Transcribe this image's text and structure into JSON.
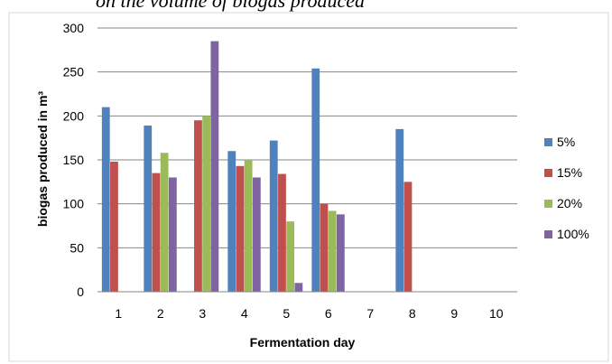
{
  "caption": "on the volume of biogas produced",
  "chart_data": {
    "type": "bar",
    "title": "",
    "xlabel": "Fermentation day",
    "ylabel": "biogas produced  in m³",
    "categories": [
      "1",
      "2",
      "3",
      "4",
      "5",
      "6",
      "7",
      "8",
      "9",
      "10"
    ],
    "ylim": [
      0,
      300
    ],
    "yticks": [
      "0",
      "50",
      "100",
      "150",
      "200",
      "250",
      "300"
    ],
    "grid": true,
    "legend_position": "right",
    "series": [
      {
        "name": "5%",
        "color": "#4f81bd",
        "values": [
          210,
          189,
          null,
          160,
          172,
          254,
          null,
          185,
          null,
          null
        ]
      },
      {
        "name": "15%",
        "color": "#c0504d",
        "values": [
          148,
          135,
          195,
          143,
          134,
          100,
          null,
          125,
          null,
          null
        ]
      },
      {
        "name": "20%",
        "color": "#9bbb59",
        "values": [
          null,
          158,
          200,
          150,
          80,
          92,
          null,
          null,
          null,
          null
        ]
      },
      {
        "name": "100%",
        "color": "#8064a2",
        "values": [
          null,
          130,
          285,
          130,
          10,
          88,
          null,
          null,
          null,
          null
        ]
      }
    ]
  }
}
